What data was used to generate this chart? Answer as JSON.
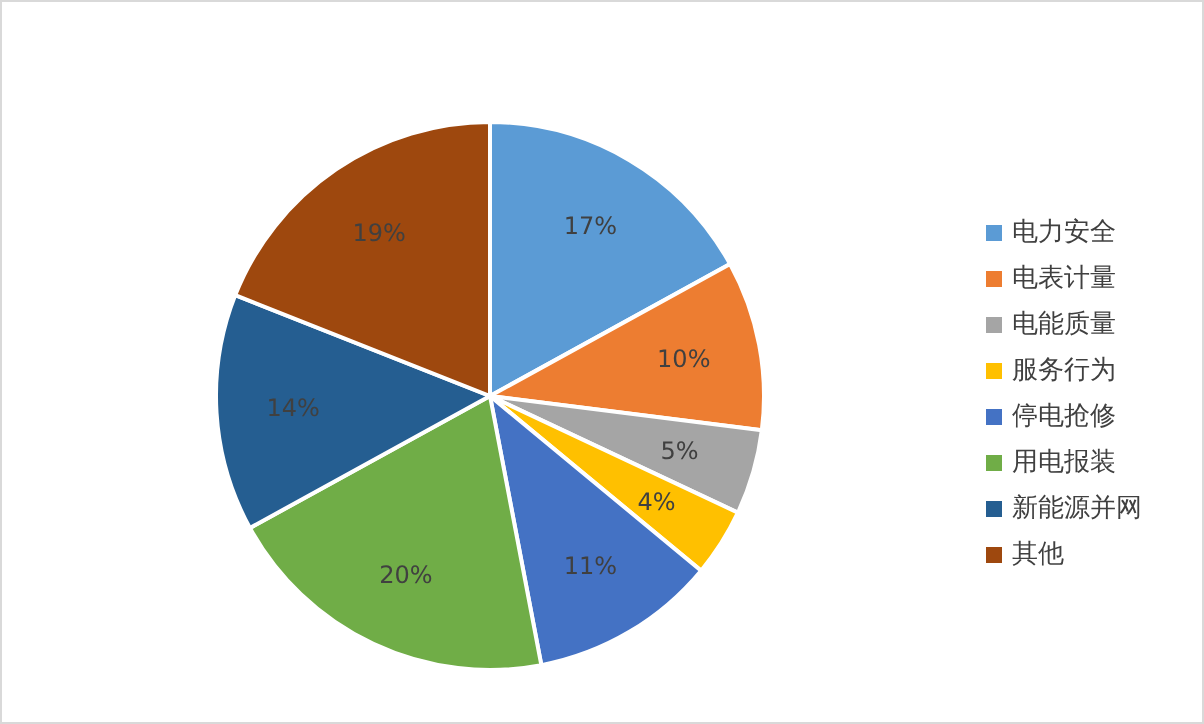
{
  "chart_data": {
    "type": "pie",
    "categories": [
      "电力安全",
      "电表计量",
      "电能质量",
      "服务行为",
      "停电抢修",
      "用电报装",
      "新能源并网",
      "其他"
    ],
    "values": [
      17,
      10,
      5,
      4,
      11,
      20,
      14,
      19
    ],
    "colors": [
      "#5b9bd5",
      "#ed7d31",
      "#a5a5a5",
      "#ffc000",
      "#4472c4",
      "#70ad47",
      "#255e91",
      "#9e480e"
    ],
    "value_labels": [
      "17%",
      "10%",
      "5%",
      "4%",
      "11%",
      "20%",
      "14%",
      "19%"
    ],
    "legend": "right"
  }
}
